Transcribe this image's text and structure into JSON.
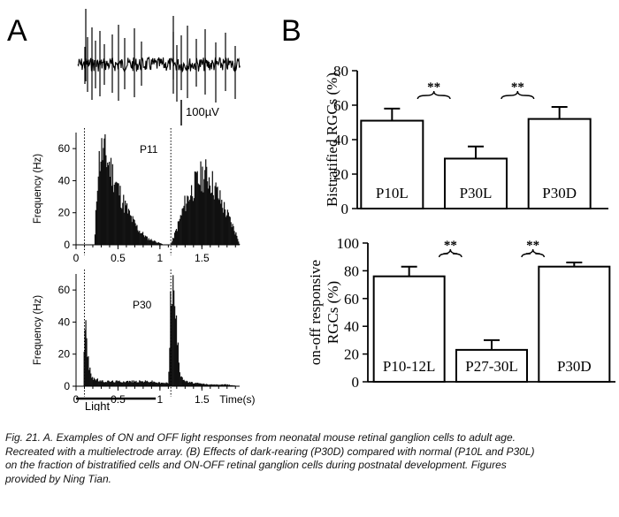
{
  "panel_labels": {
    "a": "A",
    "b": "B"
  },
  "scale_bar_label": "100µV",
  "light_label": "Light",
  "caption": {
    "lines": [
      "Fig. 21. A. Examples of ON and OFF light responses from neonatal mouse retinal ganglion cells to adult age.",
      "Recreated with a multielectrode array. (B) Effects of dark-rearing (P30D) compared with normal (P10L and P30L)",
      " on the fraction of bistratified cells and ON-OFF retinal ganglion cells during postnatal development. Figures",
      "provided by Ning Tian."
    ]
  },
  "chart_data": [
    {
      "type": "bar",
      "panel": "A",
      "title": "P11",
      "xlabel": "",
      "ylabel": "Frequency (Hz)",
      "xlim": [
        0,
        1.95
      ],
      "ylim": [
        0,
        70
      ],
      "x_ticks": [
        "0",
        "0.5",
        "1",
        "1.5"
      ],
      "x_tick_values": [
        0,
        0.5,
        1,
        1.5
      ],
      "y_ticks": [
        "0",
        "20",
        "40",
        "60"
      ],
      "y_tick_values": [
        0,
        20,
        40,
        60
      ],
      "stimulus_lines_x": [
        0.1,
        1.13
      ],
      "bin_width": 0.01,
      "envelope_x": [
        0,
        0.1,
        0.22,
        0.26,
        0.3,
        0.35,
        0.45,
        0.55,
        0.65,
        0.75,
        0.85,
        0.95,
        1.0,
        1.05,
        1.13,
        1.2,
        1.3,
        1.4,
        1.5,
        1.55,
        1.6,
        1.7,
        1.8,
        1.88,
        1.92,
        1.95
      ],
      "envelope_y": [
        0,
        0,
        0,
        48,
        58,
        56,
        42,
        28,
        17,
        9,
        4,
        2,
        1,
        0,
        0,
        10,
        26,
        36,
        43,
        44,
        41,
        30,
        19,
        10,
        5,
        0
      ]
    },
    {
      "type": "bar",
      "panel": "A",
      "title": "P30",
      "xlabel": "Time(s)",
      "ylabel": "Frequency (Hz)",
      "xlim": [
        0,
        1.95
      ],
      "ylim": [
        0,
        70
      ],
      "x_ticks": [
        "0",
        "0.5",
        "1",
        "1.5"
      ],
      "x_tick_values": [
        0,
        0.5,
        1,
        1.5
      ],
      "y_ticks": [
        "0",
        "20",
        "40",
        "60"
      ],
      "y_tick_values": [
        0,
        20,
        40,
        60
      ],
      "stimulus_lines_x": [
        0.1,
        1.13
      ],
      "stimulus_bar_x": [
        0,
        0.95
      ],
      "bin_width": 0.01,
      "envelope_x": [
        0,
        0.09,
        0.1,
        0.11,
        0.13,
        0.16,
        0.2,
        0.3,
        0.5,
        0.7,
        0.9,
        1.0,
        1.1,
        1.13,
        1.15,
        1.18,
        1.21,
        1.24,
        1.3,
        1.4,
        1.6,
        1.8,
        1.95
      ],
      "envelope_y": [
        0,
        0,
        47,
        40,
        22,
        10,
        5,
        3,
        3,
        3,
        3,
        2,
        2,
        60,
        63,
        50,
        25,
        8,
        3,
        2,
        1,
        1,
        0
      ]
    },
    {
      "type": "bar",
      "panel": "B",
      "title": "",
      "xlabel": "",
      "ylabel": "Bistratified RGCs (%)",
      "categories": [
        "P10L",
        "P30L",
        "P30D"
      ],
      "values": [
        51,
        29,
        52
      ],
      "errors": [
        7,
        7,
        7
      ],
      "ylim": [
        0,
        80
      ],
      "y_ticks": [
        "0",
        "20",
        "40",
        "60",
        "80"
      ],
      "y_tick_values": [
        0,
        20,
        40,
        60,
        80
      ],
      "significance": [
        {
          "between": [
            "P10L",
            "P30L"
          ],
          "label": "**"
        },
        {
          "between": [
            "P30L",
            "P30D"
          ],
          "label": "**"
        }
      ]
    },
    {
      "type": "bar",
      "panel": "B",
      "title": "",
      "xlabel": "",
      "ylabel": "on-off responsive RGCs (%)",
      "ylabel_lines": [
        "on-off responsive",
        "RGCs (%)"
      ],
      "categories": [
        "P10-12L",
        "P27-30L",
        "P30D"
      ],
      "values": [
        76,
        23,
        83
      ],
      "errors": [
        7,
        7,
        3
      ],
      "ylim": [
        0,
        100
      ],
      "y_ticks": [
        "0",
        "20",
        "40",
        "60",
        "80",
        "100"
      ],
      "y_tick_values": [
        0,
        20,
        40,
        60,
        80,
        100
      ],
      "significance": [
        {
          "between": [
            "P10-12L",
            "P27-30L"
          ],
          "label": "**"
        },
        {
          "between": [
            "P27-30L",
            "P30D"
          ],
          "label": "**"
        }
      ]
    }
  ]
}
